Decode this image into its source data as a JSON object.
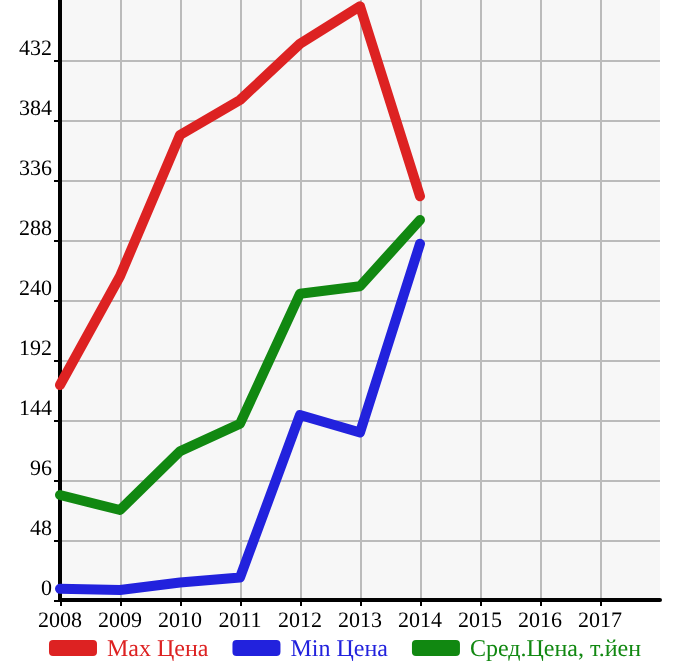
{
  "chart_data": {
    "type": "line",
    "x": [
      2008,
      2009,
      2010,
      2011,
      2012,
      2013,
      2014
    ],
    "series": [
      {
        "name": "Max Цена",
        "color": "#dd2222",
        "values": [
          172,
          259,
          372,
          400,
          445,
          475,
          323
        ]
      },
      {
        "name": "Min Цена",
        "color": "#2222dd",
        "values": [
          9,
          8,
          14,
          18,
          148,
          134,
          285
        ]
      },
      {
        "name": "Сред.Цена, т.йен",
        "color": "#118811",
        "values": [
          84,
          72,
          119,
          141,
          245,
          251,
          304
        ]
      }
    ],
    "xlim": [
      2008,
      2018
    ],
    "xticks": [
      2008,
      2009,
      2010,
      2011,
      2012,
      2013,
      2014,
      2015,
      2016,
      2017
    ],
    "ylim": [
      0,
      480
    ],
    "yticks": [
      0,
      48,
      96,
      144,
      192,
      240,
      288,
      336,
      384,
      432
    ],
    "grid": true,
    "legend": "bottom",
    "marker": "none",
    "line_style": "solid"
  }
}
